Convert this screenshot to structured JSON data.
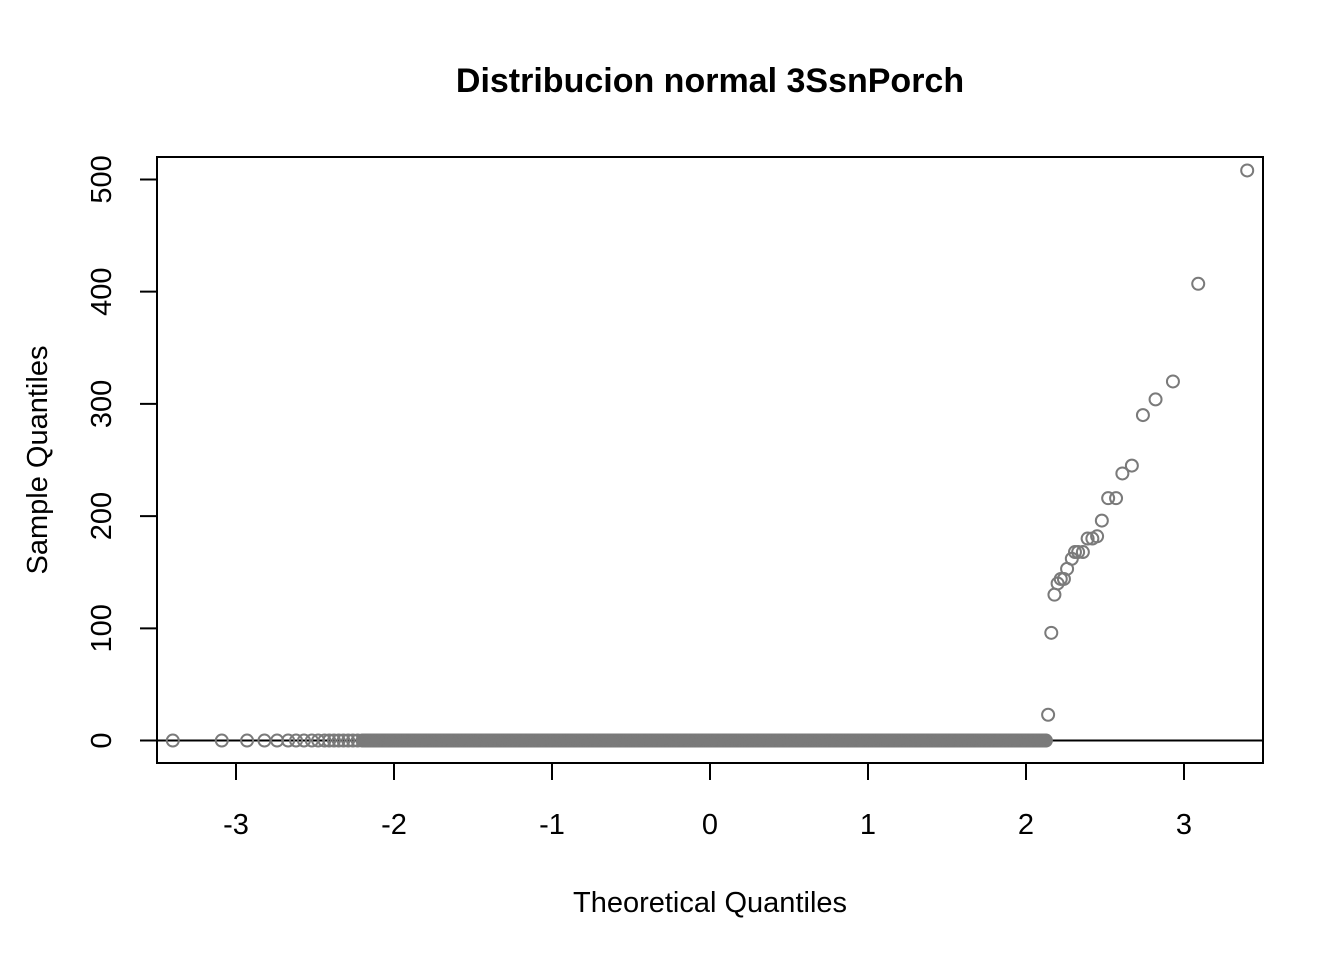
{
  "chart_data": {
    "type": "scatter",
    "title": "Distribucion normal 3SsnPorch",
    "xlabel": "Theoretical Quantiles",
    "ylabel": "Sample Quantiles",
    "xlim": [
      -3.5,
      3.5
    ],
    "ylim": [
      -20,
      520
    ],
    "xticks": [
      -3,
      -2,
      -1,
      0,
      1,
      2,
      3
    ],
    "xtick_labels": [
      "-3",
      "-2",
      "-1",
      "0",
      "1",
      "2",
      "3"
    ],
    "yticks": [
      0,
      100,
      200,
      300,
      400,
      500
    ],
    "ytick_labels": [
      "0",
      "100",
      "200",
      "300",
      "400",
      "500"
    ],
    "reference_line": {
      "type": "horizontal",
      "y": 0,
      "color": "#000000"
    },
    "point_color": "#7a7a7a",
    "grid": false,
    "legend": "none",
    "zero_run": {
      "from": -2.2,
      "to": 2.13,
      "step": 0.006,
      "y": 0
    },
    "points": [
      {
        "x": -3.4,
        "y": 0
      },
      {
        "x": -3.09,
        "y": 0
      },
      {
        "x": -2.93,
        "y": 0
      },
      {
        "x": -2.82,
        "y": 0
      },
      {
        "x": -2.74,
        "y": 0
      },
      {
        "x": -2.67,
        "y": 0
      },
      {
        "x": -2.62,
        "y": 0
      },
      {
        "x": -2.57,
        "y": 0
      },
      {
        "x": -2.52,
        "y": 0
      },
      {
        "x": -2.48,
        "y": 0
      },
      {
        "x": -2.44,
        "y": 0
      },
      {
        "x": -2.41,
        "y": 0
      },
      {
        "x": -2.38,
        "y": 0
      },
      {
        "x": -2.35,
        "y": 0
      },
      {
        "x": -2.32,
        "y": 0
      },
      {
        "x": -2.29,
        "y": 0
      },
      {
        "x": -2.26,
        "y": 0
      },
      {
        "x": -2.23,
        "y": 0
      },
      {
        "x": 2.14,
        "y": 23
      },
      {
        "x": 2.16,
        "y": 96
      },
      {
        "x": 2.18,
        "y": 130
      },
      {
        "x": 2.2,
        "y": 140
      },
      {
        "x": 2.22,
        "y": 144
      },
      {
        "x": 2.24,
        "y": 144
      },
      {
        "x": 2.26,
        "y": 153
      },
      {
        "x": 2.29,
        "y": 162
      },
      {
        "x": 2.31,
        "y": 168
      },
      {
        "x": 2.33,
        "y": 168
      },
      {
        "x": 2.36,
        "y": 168
      },
      {
        "x": 2.39,
        "y": 180
      },
      {
        "x": 2.42,
        "y": 180
      },
      {
        "x": 2.45,
        "y": 182
      },
      {
        "x": 2.48,
        "y": 196
      },
      {
        "x": 2.52,
        "y": 216
      },
      {
        "x": 2.57,
        "y": 216
      },
      {
        "x": 2.61,
        "y": 238
      },
      {
        "x": 2.67,
        "y": 245
      },
      {
        "x": 2.74,
        "y": 290
      },
      {
        "x": 2.82,
        "y": 304
      },
      {
        "x": 2.93,
        "y": 320
      },
      {
        "x": 3.09,
        "y": 407
      },
      {
        "x": 3.4,
        "y": 508
      }
    ]
  }
}
